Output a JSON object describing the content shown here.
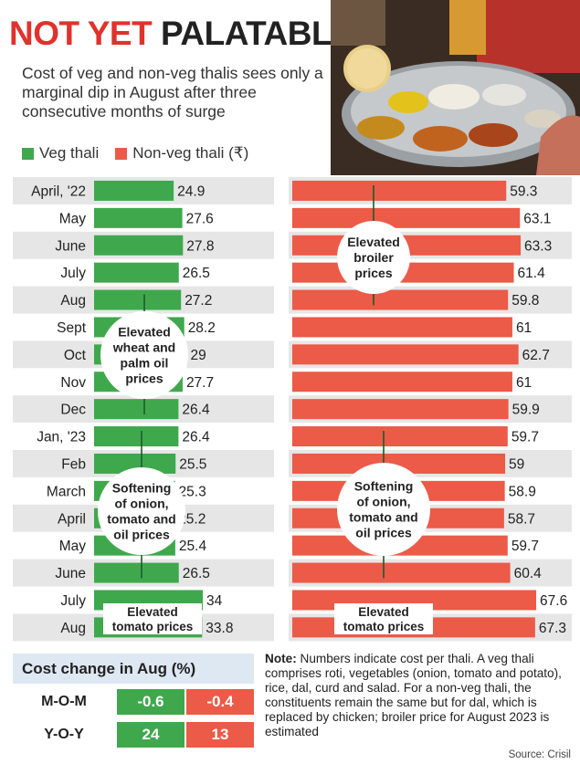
{
  "header": {
    "title_part1": "NOT YET",
    "title_part2": "PALATABLE",
    "subtitle": "Cost of veg and non-veg thalis sees only a marginal dip in August after three consecutive months of surge"
  },
  "colors": {
    "veg": "#3fa84d",
    "nonveg": "#ec5a48",
    "title_accent": "#e0322c",
    "row_band": "#e6e6e6",
    "header_cell": "#dde8f3"
  },
  "chart_data": {
    "type": "bar",
    "orientation": "horizontal",
    "categories": [
      "April, '22",
      "May",
      "June",
      "July",
      "Aug",
      "Sept",
      "Oct",
      "Nov",
      "Dec",
      "Jan, '23",
      "Feb",
      "March",
      "April",
      "May",
      "June",
      "July",
      "Aug"
    ],
    "series": [
      {
        "name": "Veg thali",
        "values": [
          24.9,
          27.6,
          27.8,
          26.5,
          27.2,
          28.2,
          29,
          27.7,
          26.4,
          26.4,
          25.5,
          25.3,
          25.2,
          25.4,
          26.5,
          34,
          33.8
        ]
      },
      {
        "name": "Non-veg thali (₹)",
        "values": [
          59.3,
          63.1,
          63.3,
          61.4,
          59.8,
          61,
          62.7,
          61,
          59.9,
          59.7,
          59,
          58.9,
          58.7,
          59.7,
          60.4,
          67.6,
          67.3
        ]
      }
    ],
    "data_labels": {
      "veg": [
        "24.9",
        "27.6",
        "27.8",
        "26.5",
        "27.2",
        "28.2",
        "29",
        "27.7",
        "26.4",
        "26.4",
        "25.5",
        "25.3",
        "25.2",
        "25.4",
        "26.5",
        "34",
        "33.8"
      ],
      "nonveg": [
        "59.3",
        "63.1",
        "63.3",
        "61.4",
        "59.8",
        "61",
        "62.7",
        "61",
        "59.9",
        "59.7",
        "59",
        "58.9",
        "58.7",
        "59.7",
        "60.4",
        "67.6",
        "67.3"
      ]
    },
    "annotations": {
      "veg": [
        {
          "lines": [
            "Elevated",
            "wheat and",
            "palm oil",
            "prices"
          ],
          "shape": "circle",
          "rows": [
            4,
            8
          ]
        },
        {
          "lines": [
            "Softening",
            "of onion,",
            "tomato and",
            "oil prices"
          ],
          "shape": "circle",
          "rows": [
            9,
            14
          ]
        },
        {
          "lines": [
            "Elevated",
            "tomato prices"
          ],
          "shape": "box",
          "rows": [
            15,
            16
          ]
        }
      ],
      "nonveg": [
        {
          "lines": [
            "Elevated",
            "broiler",
            "prices"
          ],
          "shape": "circle",
          "rows": [
            0,
            4
          ]
        },
        {
          "lines": [
            "Softening",
            "of onion,",
            "tomato and",
            "oil prices"
          ],
          "shape": "circle",
          "rows": [
            9,
            14
          ]
        },
        {
          "lines": [
            "Elevated",
            "tomato prices"
          ],
          "shape": "box",
          "rows": [
            15,
            16
          ]
        }
      ]
    }
  },
  "cost_change": {
    "title": "Cost change in Aug (%)",
    "rows": [
      {
        "label": "M-O-M",
        "veg": "-0.6",
        "nonveg": "-0.4"
      },
      {
        "label": "Y-O-Y",
        "veg": "24",
        "nonveg": "13"
      }
    ]
  },
  "note": {
    "label": "Note:",
    "text": " Numbers indicate cost per thali. A veg thali comprises roti, vegetables (onion, tomato and potato), rice, dal, curd and salad. For a non-veg thali, the constituents remain the same but for dal, which is replaced by chicken; broiler price for August 2023 is estimated"
  },
  "source": "Source: Crisil"
}
